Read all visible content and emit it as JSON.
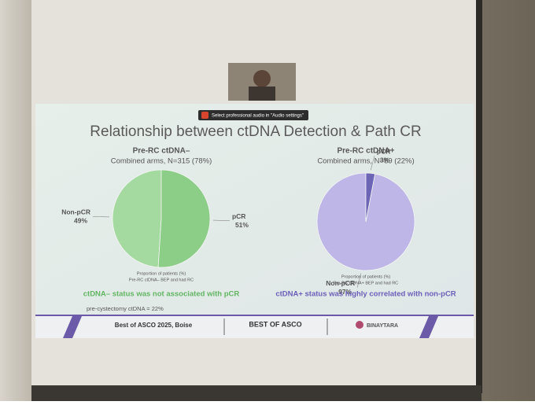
{
  "slide": {
    "notice": "Select professional audio in \"Audio settings\"",
    "title": "Relationship between ctDNA Detection & Path CR",
    "footnote": "pre-cystectomy ctDNA = 22%",
    "footer": {
      "event": "Best of ASCO 2025, Boise",
      "logo": "BEST OF ASCO",
      "sponsor": "BINAYTARA"
    }
  },
  "chart_data": [
    {
      "type": "pie",
      "title": "Pre-RC ctDNA–",
      "subtitle": "Combined arms, N=315 (78%)",
      "categories": [
        "Non-pCR",
        "pCR"
      ],
      "values": [
        49,
        51
      ],
      "value_labels": [
        "49%",
        "51%"
      ],
      "colors": [
        "#a4d9a0",
        "#8cce88"
      ],
      "notes": [
        "Proportion of patients (%)",
        "Pre-RC ctDNA– BEP and had RC"
      ],
      "caption": "ctDNA– status was not associated with pCR",
      "caption_color": "#62b562"
    },
    {
      "type": "pie",
      "title": "Pre-RC ctDNA+",
      "subtitle": "Combined arms, N=89 (22%)",
      "categories": [
        "Non-pCR",
        "pCR"
      ],
      "values": [
        97,
        3
      ],
      "value_labels": [
        "97%",
        "3%"
      ],
      "colors": [
        "#bdb6e6",
        "#6c64b4"
      ],
      "notes": [
        "Proportion of patients (%)",
        "Pre-RC ctDNA+ BEP and had RC"
      ],
      "caption": "ctDNA+ status was highly correlated with non-pCR",
      "caption_color": "#6a5fb8"
    }
  ]
}
